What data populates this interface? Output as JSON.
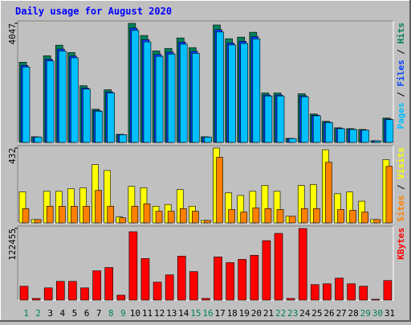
{
  "title": "Daily usage for August 2020",
  "legend_separator": "/",
  "chart_data": [
    {
      "type": "bar",
      "ylim": [
        0,
        4047
      ],
      "yticks": [
        4047
      ],
      "series": [
        {
          "name": "Hits",
          "color": "#00805c",
          "values": [
            2726,
            193,
            2946,
            3304,
            3056,
            1927,
            1129,
            1790,
            275,
            4047,
            3634,
            3111,
            3194,
            3551,
            3221,
            193,
            3992,
            3524,
            3579,
            3744,
            1679,
            1679,
            138,
            1652,
            964,
            716,
            496,
            468,
            440,
            55,
            826
          ]
        },
        {
          "name": "Files",
          "color": "#0040ff",
          "values": [
            2617,
            185,
            2828,
            3172,
            2934,
            1850,
            1084,
            1718,
            264,
            3885,
            3489,
            2987,
            3066,
            3409,
            3092,
            185,
            3832,
            3383,
            3436,
            3594,
            1612,
            1612,
            132,
            1586,
            925,
            687,
            476,
            449,
            422,
            53,
            793
          ]
        },
        {
          "name": "Pages",
          "color": "#00c0ff",
          "values": [
            2563,
            181,
            2769,
            3106,
            2873,
            1811,
            1061,
            1683,
            259,
            3804,
            3416,
            2924,
            3002,
            3338,
            3028,
            181,
            3752,
            3313,
            3364,
            3519,
            1578,
            1578,
            130,
            1553,
            906,
            673,
            466,
            440,
            414,
            52,
            776
          ]
        }
      ]
    },
    {
      "type": "bar",
      "ylim": [
        0,
        432
      ],
      "yticks": [
        432
      ],
      "series": [
        {
          "name": "Visits",
          "color": "#ffff00",
          "values": [
            178,
            19,
            182,
            182,
            197,
            202,
            336,
            302,
            34,
            211,
            202,
            96,
            106,
            192,
            96,
            14,
            432,
            173,
            158,
            182,
            216,
            182,
            38,
            216,
            221,
            422,
            168,
            178,
            125,
            19,
            365
          ]
        },
        {
          "name": "Sites",
          "color": "#ff8000",
          "values": [
            82,
            19,
            96,
            96,
            96,
            96,
            187,
            96,
            29,
            96,
            110,
            67,
            67,
            82,
            67,
            14,
            379,
            77,
            62,
            86,
            82,
            77,
            38,
            82,
            82,
            350,
            77,
            72,
            62,
            19,
            326
          ]
        }
      ]
    },
    {
      "type": "bar",
      "ylim": [
        0,
        122455
      ],
      "yticks": [
        122455
      ],
      "categories": [
        "1",
        "2",
        "3",
        "4",
        "5",
        "6",
        "7",
        "8",
        "9",
        "10",
        "11",
        "12",
        "13",
        "14",
        "15",
        "16",
        "17",
        "18",
        "19",
        "20",
        "21",
        "22",
        "23",
        "24",
        "25",
        "26",
        "27",
        "28",
        "29",
        "30",
        "31"
      ],
      "category_colors": [
        "#00805c",
        "#00805c",
        "#000000",
        "#000000",
        "#000000",
        "#000000",
        "#000000",
        "#00805c",
        "#00805c",
        "#000000",
        "#000000",
        "#000000",
        "#000000",
        "#000000",
        "#00805c",
        "#00805c",
        "#000000",
        "#000000",
        "#000000",
        "#000000",
        "#000000",
        "#00805c",
        "#00805c",
        "#000000",
        "#000000",
        "#000000",
        "#000000",
        "#000000",
        "#00805c",
        "#00805c",
        "#000000"
      ],
      "series": [
        {
          "name": "KBytes",
          "color": "#ff0000",
          "values": [
            23655,
            2783,
            20873,
            32005,
            32005,
            20873,
            50094,
            55660,
            8349,
            116886,
            70967,
            30613,
            43137,
            75141,
            48703,
            2783,
            73750,
            64009,
            69575,
            76533,
            101580,
            114103,
            2783,
            122455,
            26439,
            27830,
            37571,
            27830,
            23655,
            1391,
            33396
          ]
        }
      ]
    }
  ]
}
